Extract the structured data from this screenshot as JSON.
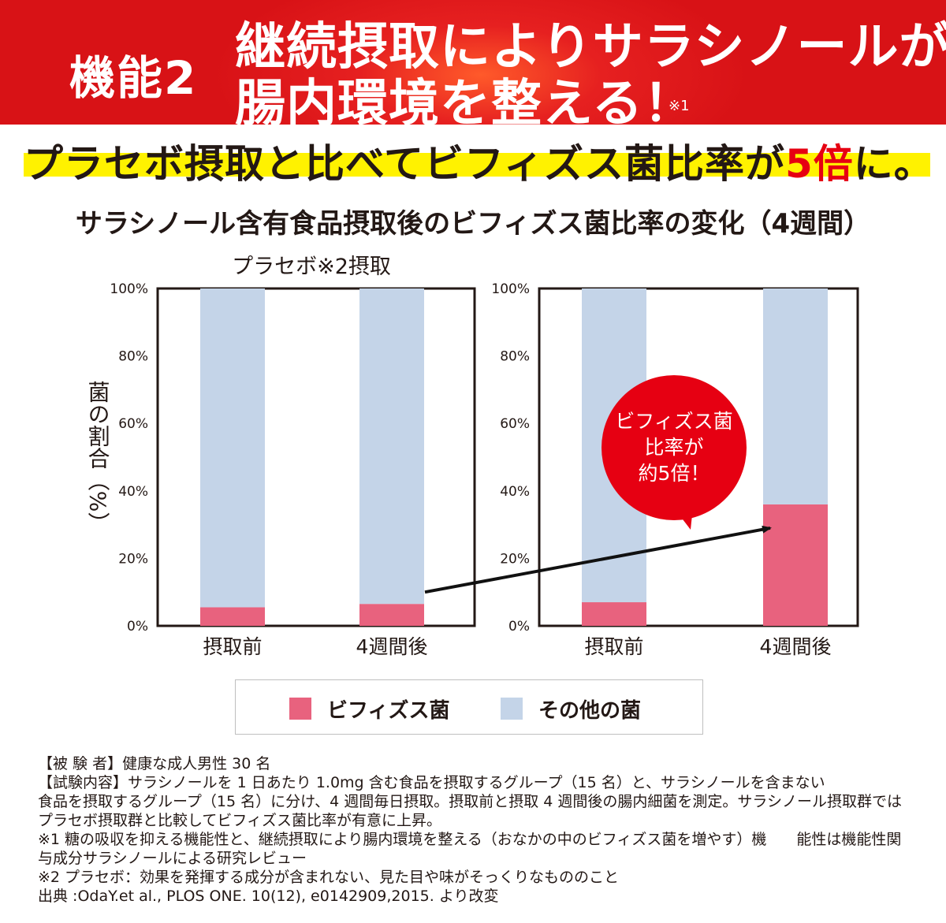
{
  "banner": {
    "kino": "機能2",
    "line1": "継続摂取によりサラシノールが",
    "line2": "腸内環境を整える！",
    "note": "※1"
  },
  "subtitle": {
    "before": "プラセボ摂取と比べてビフィズス菌比率が",
    "emph": "5倍",
    "after": "に。"
  },
  "chart_title": "サラシノール含有食品摂取後のビフィズス菌比率の変化（4週間）",
  "callout": {
    "line1": "ビフィズス菌",
    "line2": "比率が",
    "line3": "約5倍！"
  },
  "chart_data": [
    {
      "type": "bar",
      "stacked": true,
      "title": "プラセボ※2摂取",
      "ylabel": "菌の割合（%）",
      "ylim": [
        0,
        100
      ],
      "yticks": [
        "0%",
        "20%",
        "40%",
        "60%",
        "80%",
        "100%"
      ],
      "categories": [
        "摂取前",
        "4週間後"
      ],
      "series": [
        {
          "name": "ビフィズス菌",
          "values": [
            5.5,
            6.5
          ],
          "color": "#e8627e"
        },
        {
          "name": "その他の菌",
          "values": [
            94.5,
            93.5
          ],
          "color": "#c4d4e8"
        }
      ]
    },
    {
      "type": "bar",
      "stacked": true,
      "title": "",
      "ylim": [
        0,
        100
      ],
      "yticks": [
        "0%",
        "20%",
        "40%",
        "60%",
        "80%",
        "100%"
      ],
      "categories": [
        "摂取前",
        "4週間後"
      ],
      "series": [
        {
          "name": "ビフィズス菌",
          "values": [
            7,
            36
          ],
          "color": "#e8627e"
        },
        {
          "name": "その他の菌",
          "values": [
            93,
            64
          ],
          "color": "#c4d4e8"
        }
      ]
    }
  ],
  "legend": [
    {
      "label": "ビフィズス菌",
      "color": "#e8627e"
    },
    {
      "label": "その他の菌",
      "color": "#c4d4e8"
    }
  ],
  "notes": [
    "【被 験 者】健康な成人男性 30 名",
    "【試験内容】サラシノールを 1 日あたり 1.0mg 含む食品を摂取するグループ（15 名）と、サラシノールを含まない",
    "食品を摂取するグループ（15 名）に分け、4 週間毎日摂取。摂取前と摂取 4 週間後の腸内細菌を測定。サラシノール摂取群では",
    "プラセボ摂取群と比較してビフィズス菌比率が有意に上昇。",
    "※1 糖の吸収を抑える機能性と、継続摂取により腸内環境を整える（おなかの中のビフィズス菌を増やす）機　　能性は機能性関",
    "与成分サラシノールによる研究レビュー",
    "※2 プラセボ：効果を発揮する成分が含まれない、見た目や味がそっくりなもののこと",
    "出典 :OdaY.et al., PLOS ONE. 10(12), e0142909,2015. より改変"
  ]
}
